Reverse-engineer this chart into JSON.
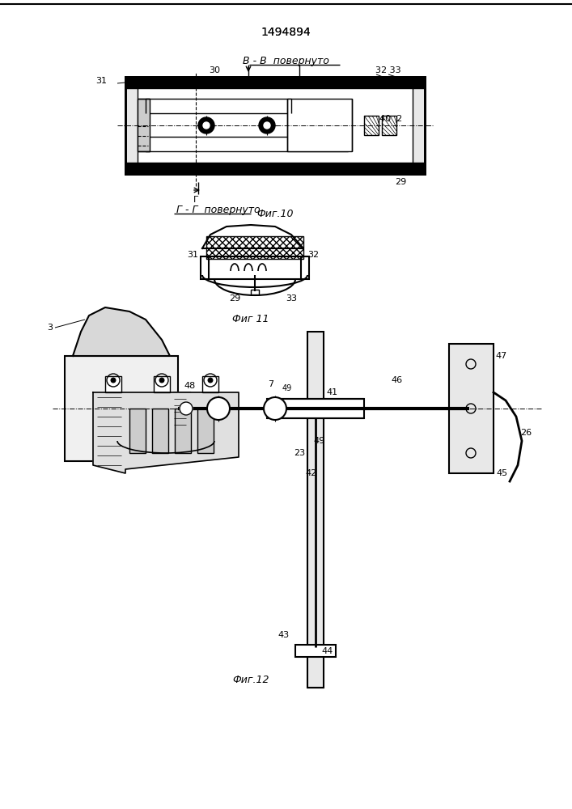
{
  "title": "1494894",
  "bg_color": "#ffffff",
  "fig_width": 7.07,
  "fig_height": 10.0,
  "sections": {
    "header_label": "B - B  повернуто",
    "middle_label": "Г - Г  повернуто",
    "fig10_caption": "Фиг.10",
    "fig11_caption": "Фиг 11",
    "fig12_caption": "Фиг.12"
  }
}
